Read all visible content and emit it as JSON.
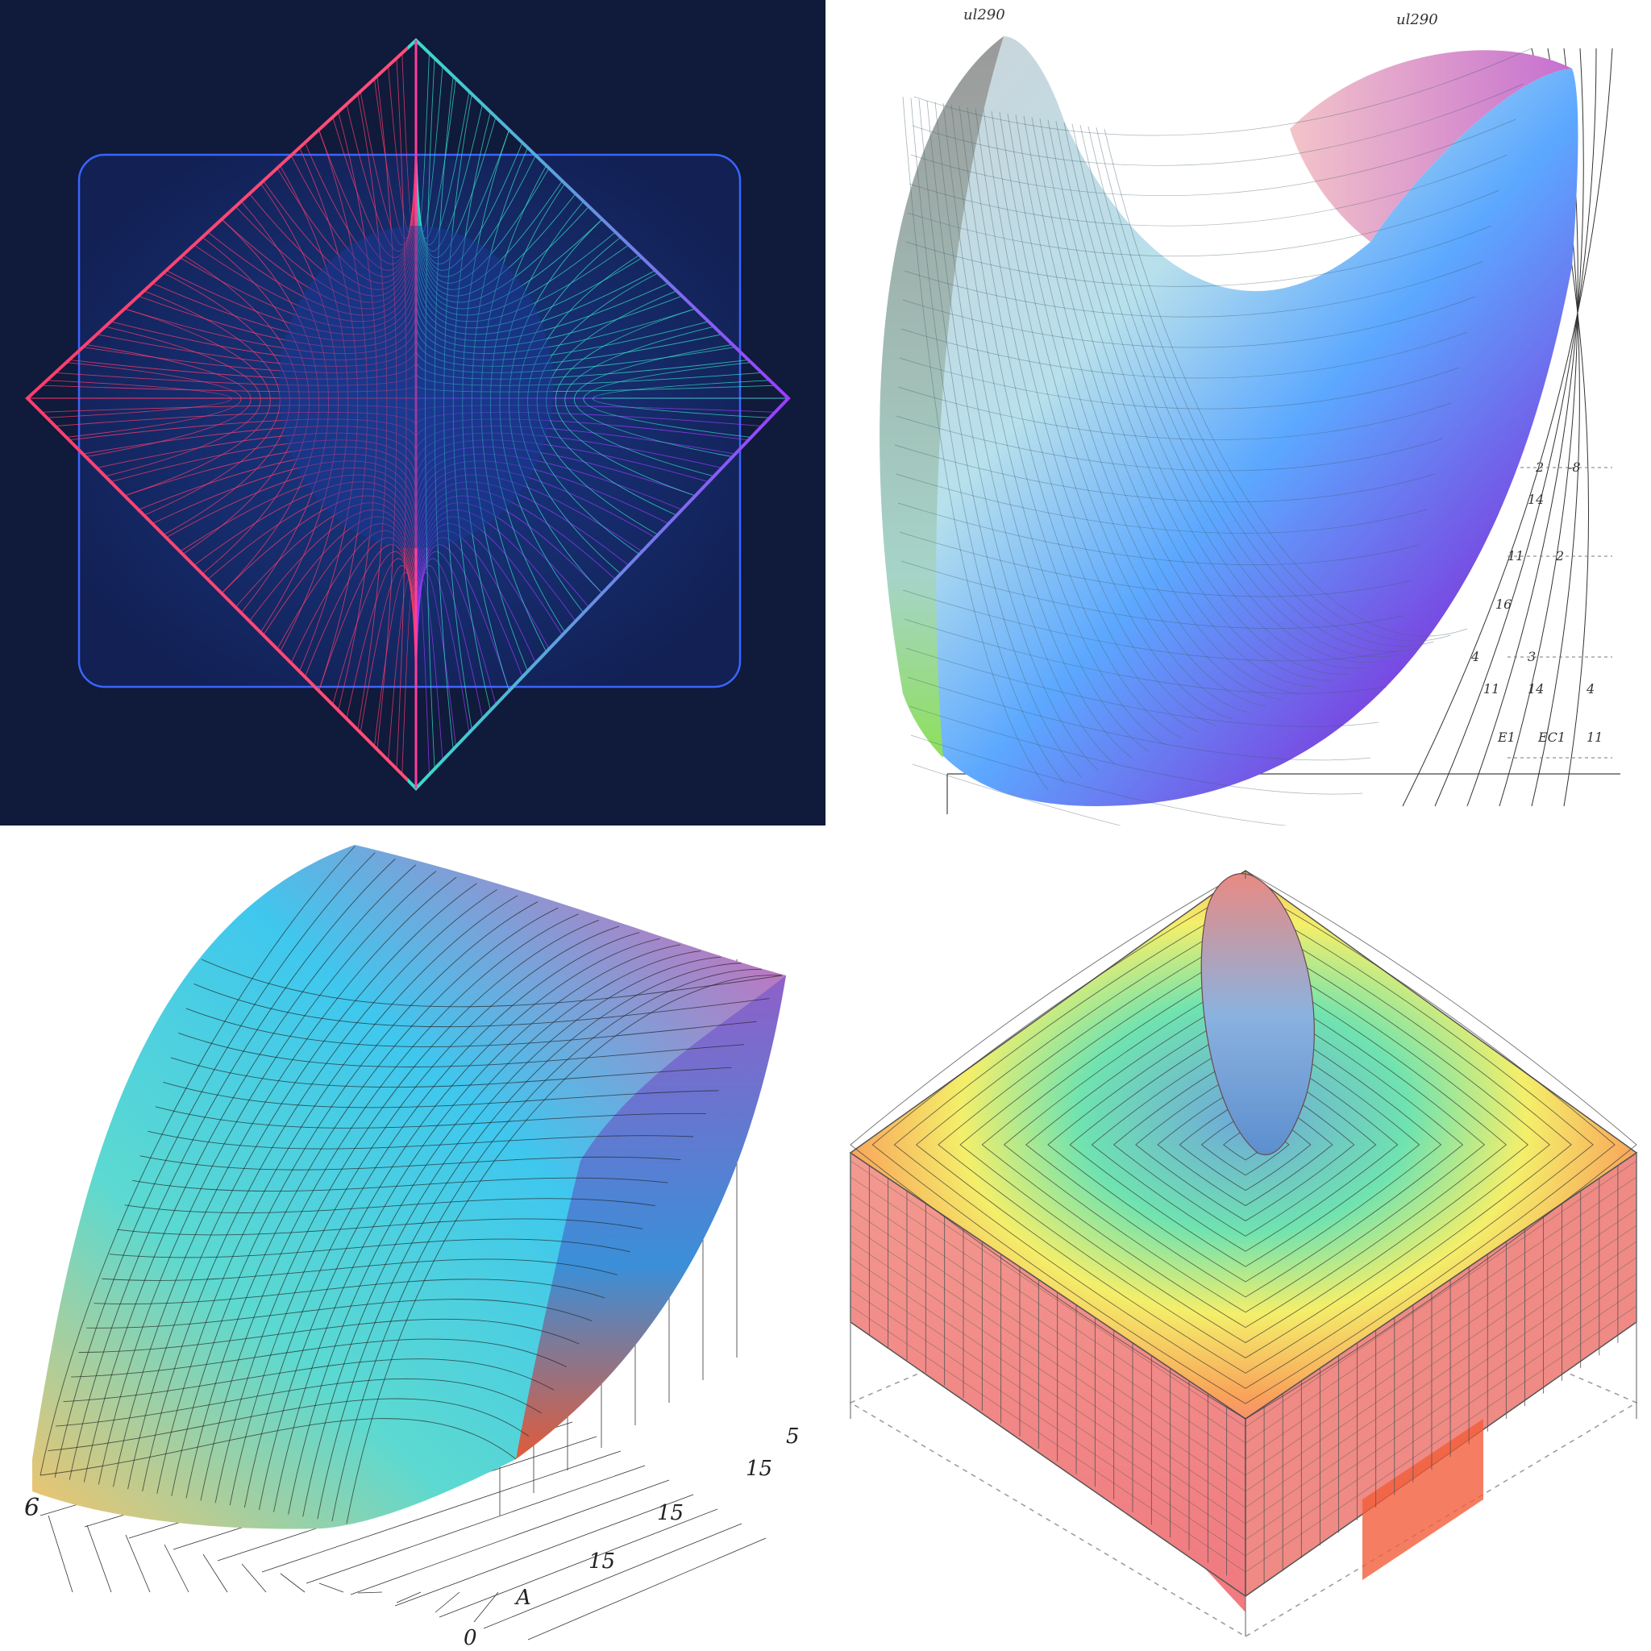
{
  "panels": [
    {
      "id": "octahedron",
      "background": "#101a3a"
    },
    {
      "id": "shell-surface",
      "background": "#ffffff",
      "top_labels": [
        "ul290",
        "ul290"
      ],
      "side_labels": [
        "2",
        "-8",
        "14",
        "11",
        "2",
        "16",
        "4",
        "3",
        "11",
        "14",
        "4",
        "E1",
        "EC1",
        "11"
      ]
    },
    {
      "id": "saddle-surface",
      "background": "#ffffff",
      "left_label": "6",
      "right_labels": [
        "5",
        "15",
        "15",
        "15",
        "A",
        "0"
      ]
    },
    {
      "id": "contour-block",
      "background": "#ffffff"
    }
  ],
  "colors": {
    "red": "#ff3d6e",
    "cyan": "#36e0c8",
    "purple": "#9b3dff",
    "blue": "#2c86ff",
    "yellow": "#f6ec5a",
    "green": "#5fe38a",
    "salmon": "#f58a8a"
  }
}
